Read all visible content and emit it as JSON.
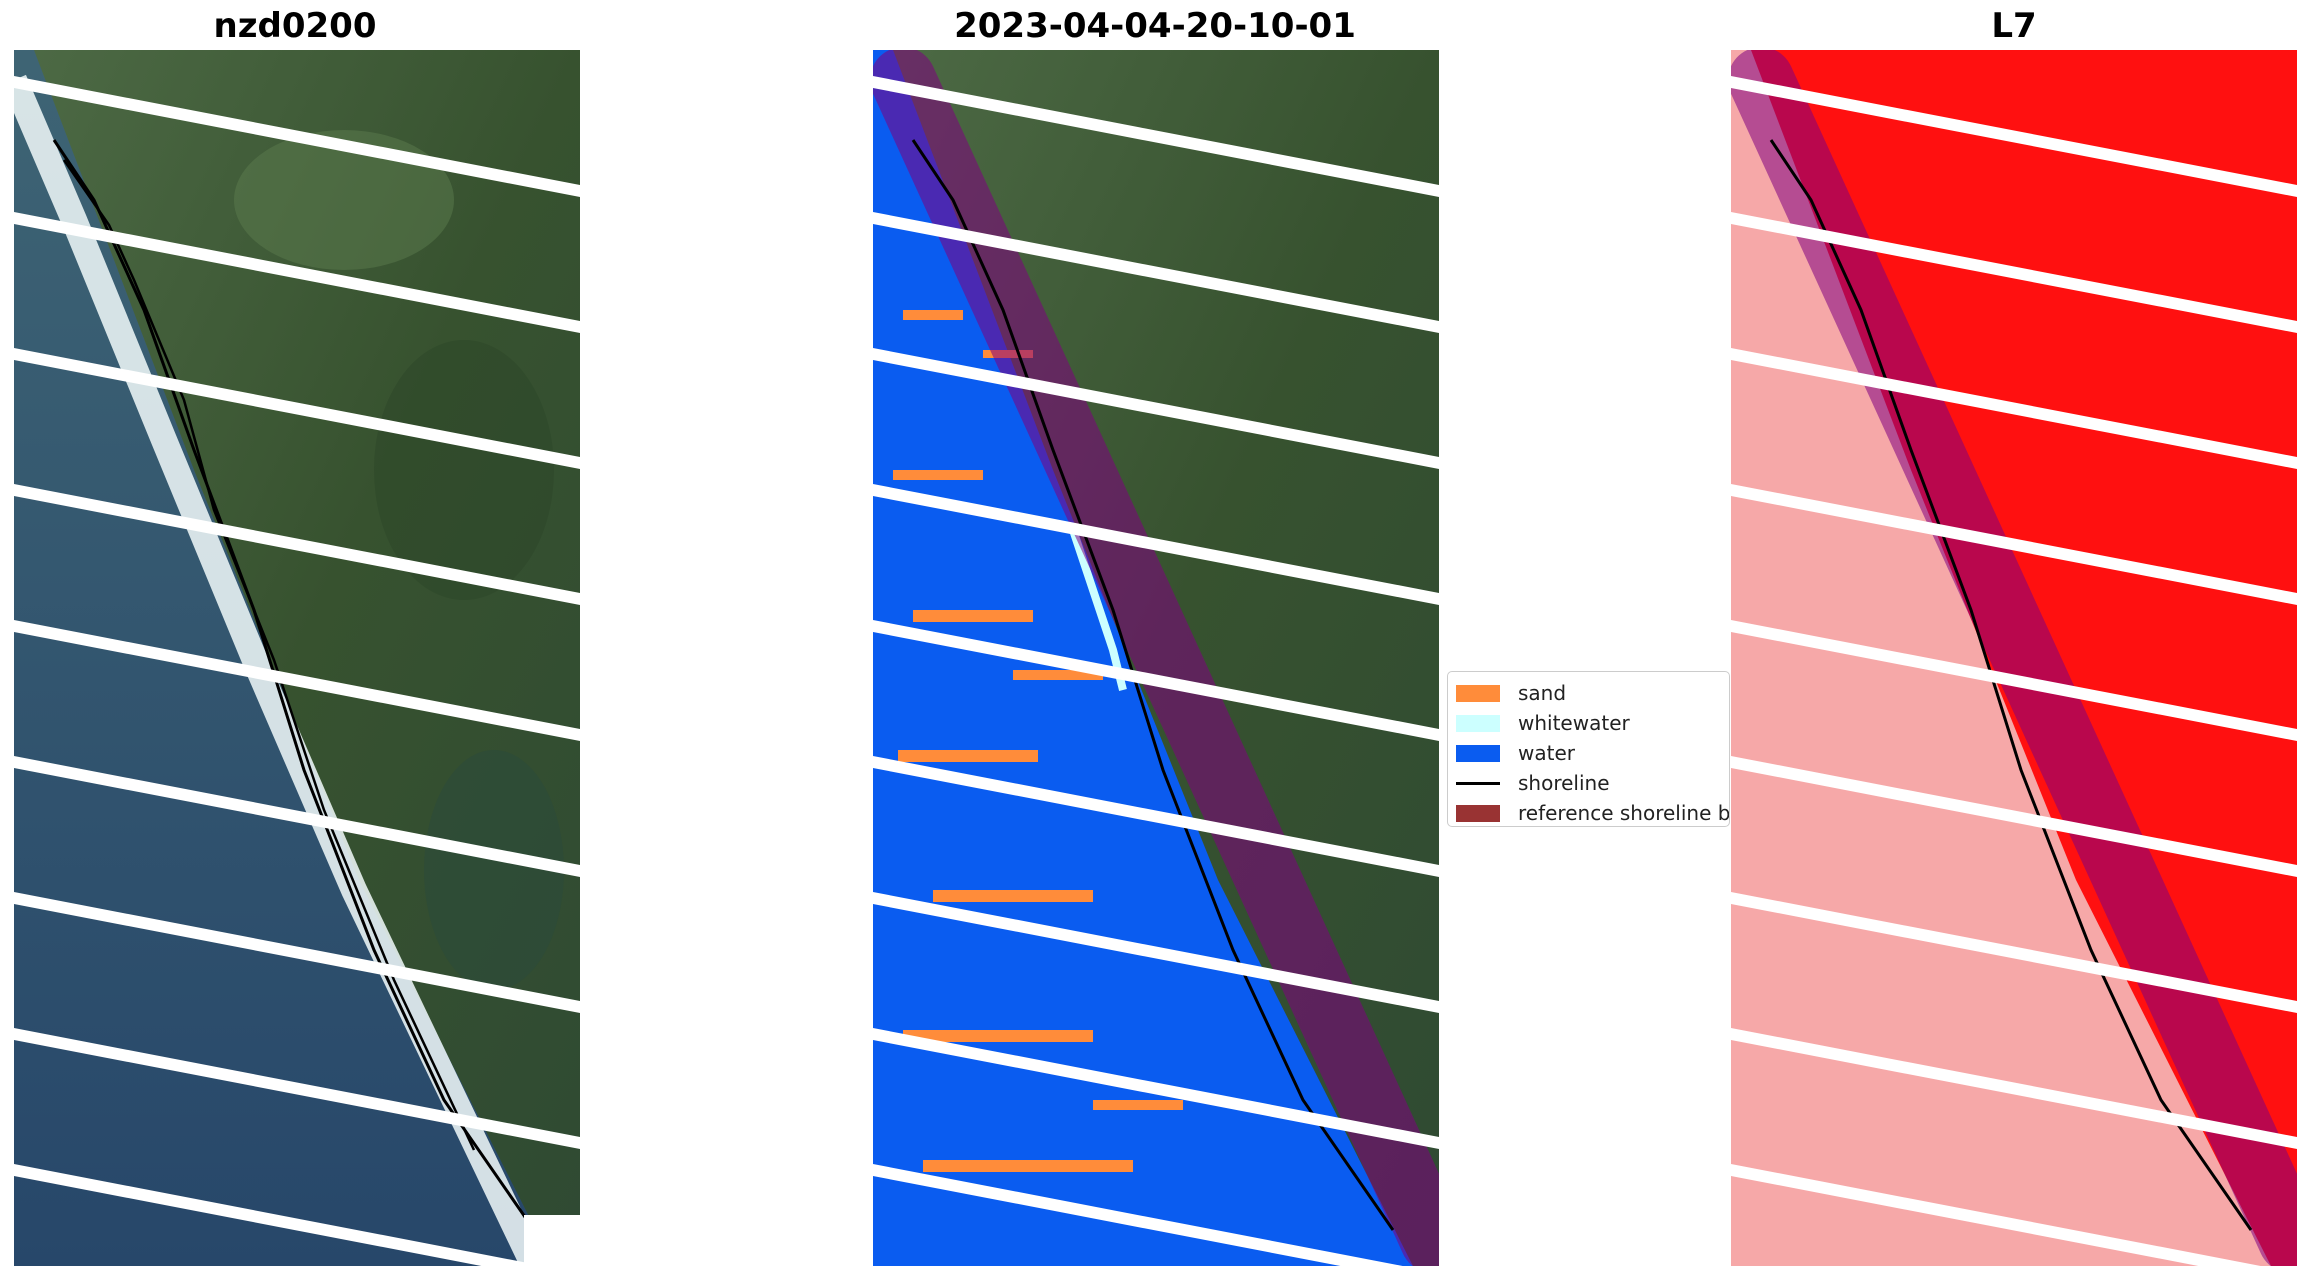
{
  "panels": [
    {
      "title": "nzd0200",
      "kind": "rgb-image"
    },
    {
      "title": "2023-04-04-20-10-01",
      "kind": "classified-image"
    },
    {
      "title": "L7",
      "kind": "water-index-image"
    }
  ],
  "legend": {
    "items": [
      {
        "label": "sand",
        "color": "#ff8c3a"
      },
      {
        "label": "whitewater",
        "color": "#ccffff"
      },
      {
        "label": "water",
        "color": "#0a5cf0"
      },
      {
        "label": "shoreline",
        "color": "#000000"
      },
      {
        "label": "reference shoreline buffer",
        "color": "#993333"
      }
    ]
  },
  "colors": {
    "land": "#3f5a3a",
    "ocean": "#2f4f6a",
    "surf": "#e8f4f4",
    "buffer": "#800080",
    "index_high": "#ff1010",
    "index_low": "#f6a8a8",
    "scanline_gap": "#ffffff"
  }
}
